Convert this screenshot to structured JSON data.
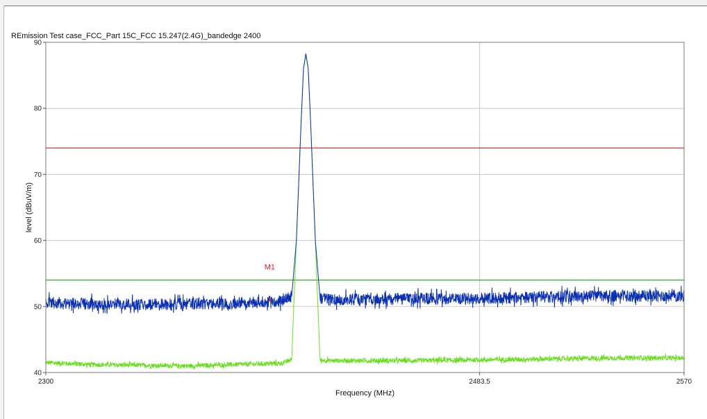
{
  "chart_data": {
    "type": "line",
    "title": "REmission Test case_FCC_Part 15C_FCC 15.247(2.4G)_bandedge 2400",
    "xlabel": "Frequency (MHz)",
    "ylabel": "level (dBuV/m)",
    "xlim": [
      2300,
      2570
    ],
    "ylim": [
      40,
      90
    ],
    "x_ticks": [
      2300,
      2483.5,
      2570
    ],
    "x_tick_labels": [
      "2300",
      "2483.5",
      "2570"
    ],
    "y_ticks": [
      40,
      50,
      60,
      70,
      80,
      90
    ],
    "y_tick_labels": [
      "40",
      "50",
      "60",
      "70",
      "80",
      "90"
    ],
    "grid": true,
    "series": [
      {
        "color": "#0a2fb0",
        "x": [
          2300,
          2320,
          2340,
          2360,
          2380,
          2400,
          2404,
          2406,
          2408,
          2409,
          2410,
          2411,
          2412,
          2414,
          2416,
          2420,
          2440,
          2460,
          2480,
          2500,
          2520,
          2540,
          2560,
          2570
        ],
        "values": [
          50.6,
          50.4,
          50.3,
          50.4,
          50.5,
          50.8,
          51.5,
          60,
          78,
          86,
          88.3,
          86,
          78,
          60,
          51.3,
          51.0,
          51.1,
          51.2,
          51.2,
          51.4,
          51.5,
          51.6,
          51.6,
          51.6
        ]
      },
      {
        "color": "#66e01a",
        "x": [
          2300,
          2320,
          2340,
          2360,
          2380,
          2400,
          2404,
          2406,
          2408,
          2409,
          2410,
          2411,
          2412,
          2414,
          2416,
          2420,
          2440,
          2460,
          2480,
          2500,
          2520,
          2540,
          2560,
          2570
        ],
        "values": [
          41.5,
          41.2,
          41.1,
          41.0,
          41.2,
          41.4,
          42,
          60,
          78,
          86,
          88.0,
          86,
          78,
          60,
          41.9,
          41.8,
          41.8,
          41.8,
          41.9,
          42.0,
          42.1,
          42.2,
          42.2,
          42.2
        ]
      }
    ],
    "limit_lines": [
      {
        "value": 74,
        "color": "#d42020"
      },
      {
        "value": 54,
        "color": "#22b022"
      }
    ],
    "markers": [
      {
        "label": "M1",
        "x": 2395,
        "y": 51.0,
        "color": "#d42020"
      }
    ],
    "colors": {
      "grid": "#c8c8c8",
      "axis": "#555555",
      "plot_border": "#7a7a7a"
    }
  }
}
